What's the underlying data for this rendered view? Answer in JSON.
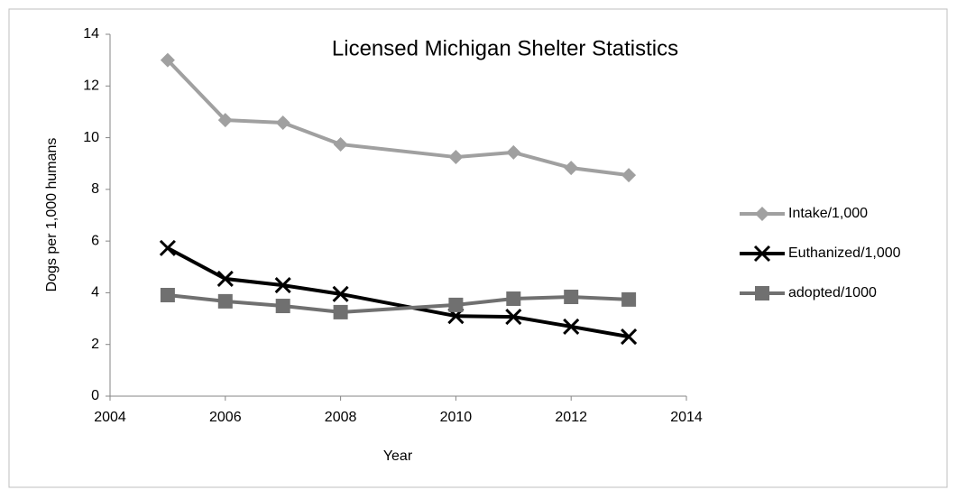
{
  "chart_data": {
    "type": "line",
    "title": "Licensed Michigan Shelter Statistics",
    "x_label": "Year",
    "y_label": "Dogs per 1,000 humans",
    "x": [
      2005,
      2006,
      2007,
      2008,
      2010,
      2011,
      2012,
      2013
    ],
    "series": [
      {
        "name": "Intake/1,000",
        "color": "#a0a0a0",
        "marker": "diamond",
        "values": [
          13.0,
          10.68,
          10.58,
          9.74,
          9.25,
          9.43,
          8.83,
          8.55
        ]
      },
      {
        "name": "Euthanized/1,000",
        "color": "#000000",
        "marker": "x",
        "values": [
          5.73,
          4.54,
          4.29,
          3.95,
          3.1,
          3.07,
          2.69,
          2.3
        ]
      },
      {
        "name": "adopted/1000",
        "color": "#707070",
        "marker": "square",
        "values": [
          3.91,
          3.67,
          3.49,
          3.25,
          3.53,
          3.77,
          3.84,
          3.74
        ]
      }
    ],
    "xlim": [
      2004,
      2014
    ],
    "xticks": [
      2004,
      2006,
      2008,
      2010,
      2012,
      2014
    ],
    "ylim": [
      0,
      14
    ],
    "yticks": [
      0,
      2,
      4,
      6,
      8,
      10,
      12,
      14
    ],
    "grid": false,
    "legend": "right"
  }
}
